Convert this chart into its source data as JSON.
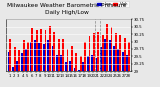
{
  "title": "Milwaukee Weather Barometric Pressure",
  "subtitle": "Daily High/Low",
  "background_color": "#e8e8e8",
  "plot_bg_color": "#e8e8e8",
  "grid_color": "#ffffff",
  "high_color": "#ff0000",
  "low_color": "#0000cc",
  "legend_high_color": "#ff0000",
  "legend_low_color": "#0000cc",
  "ylim": [
    29.0,
    30.75
  ],
  "ytick_vals": [
    29.0,
    29.25,
    29.5,
    29.75,
    30.0,
    30.25,
    30.5,
    30.75
  ],
  "ytick_labels": [
    "29",
    "29.25",
    "29.5",
    "29.75",
    "30",
    "30.25",
    "30.5",
    "30.75"
  ],
  "days": [
    1,
    2,
    3,
    4,
    5,
    6,
    7,
    8,
    9,
    10,
    11,
    12,
    13,
    14,
    15,
    16,
    17,
    18,
    19,
    20,
    21,
    22,
    23,
    24,
    25,
    26,
    27,
    28
  ],
  "highs": [
    30.1,
    29.8,
    29.7,
    30.05,
    30.0,
    30.45,
    30.4,
    30.42,
    30.38,
    30.52,
    30.32,
    30.08,
    30.08,
    29.75,
    29.85,
    29.6,
    29.5,
    30.0,
    30.18,
    30.28,
    30.32,
    30.22,
    30.58,
    30.48,
    30.28,
    30.22,
    30.12,
    29.98
  ],
  "lows": [
    29.65,
    29.15,
    29.35,
    29.6,
    29.75,
    30.0,
    30.05,
    29.95,
    29.9,
    30.05,
    29.85,
    29.55,
    29.55,
    29.3,
    29.35,
    29.1,
    29.05,
    29.3,
    29.5,
    29.55,
    29.45,
    29.8,
    30.1,
    30.05,
    29.85,
    29.75,
    29.65,
    29.55
  ],
  "vline_pos": 19.5,
  "bar_width": 0.42,
  "title_fontsize": 4.2,
  "tick_fontsize": 2.8,
  "legend_fontsize": 2.6
}
